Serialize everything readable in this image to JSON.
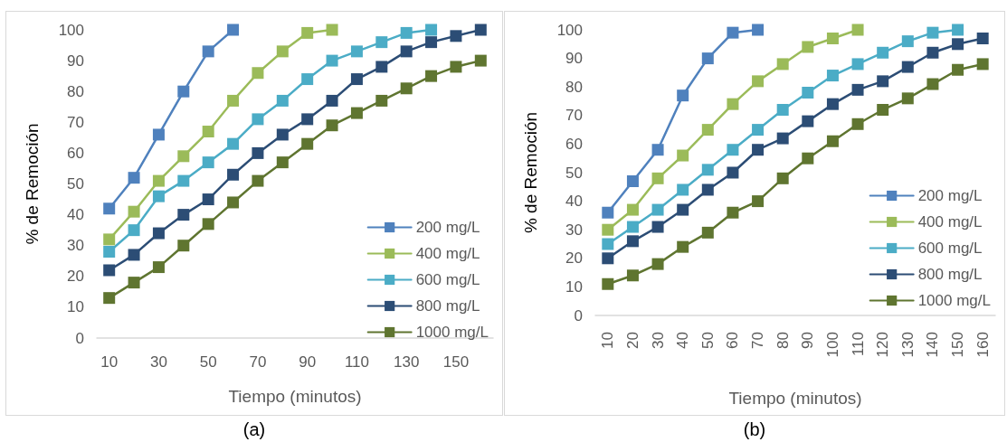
{
  "chart_data": [
    {
      "type": "line",
      "xlabel": "Tiempo (minutos)",
      "ylabel": "% de Remoción",
      "annotations": [
        "(a)"
      ],
      "categories": [
        "10",
        null,
        "30",
        null,
        "50",
        null,
        "70",
        null,
        "90",
        null,
        "110",
        null,
        "130",
        null,
        "150",
        null
      ],
      "ylim": [
        0,
        100
      ],
      "yticks": [
        0,
        10,
        20,
        30,
        40,
        50,
        60,
        70,
        80,
        90,
        100
      ],
      "grid": false,
      "legend": "right",
      "marker": "square",
      "line_style": "solid",
      "series": [
        {
          "name": "200 mg/L",
          "color": "#4f81bd",
          "values": [
            42,
            52,
            66,
            80,
            93,
            100,
            null,
            null,
            null,
            null,
            null,
            null,
            null,
            null,
            null,
            null
          ]
        },
        {
          "name": "400 mg/L",
          "color": "#9bbb59",
          "values": [
            32,
            41,
            51,
            59,
            67,
            77,
            86,
            93,
            99,
            100,
            null,
            null,
            null,
            null,
            null,
            null
          ]
        },
        {
          "name": "600 mg/L",
          "color": "#4bacc6",
          "values": [
            28,
            35,
            46,
            51,
            57,
            63,
            71,
            77,
            84,
            90,
            93,
            96,
            99,
            100,
            null,
            null
          ]
        },
        {
          "name": "800 mg/L",
          "color": "#2c4d75",
          "values": [
            22,
            27,
            34,
            40,
            45,
            53,
            60,
            66,
            71,
            77,
            84,
            88,
            93,
            96,
            98,
            100
          ]
        },
        {
          "name": "1000 mg/L",
          "color": "#5f7530",
          "values": [
            13,
            18,
            23,
            30,
            37,
            44,
            51,
            57,
            63,
            69,
            73,
            77,
            81,
            85,
            88,
            90
          ]
        }
      ]
    },
    {
      "type": "line",
      "xlabel": "Tiempo (minutos)",
      "ylabel": "% de Remoción",
      "annotations": [
        "(b)"
      ],
      "categories": [
        "10",
        "20",
        "30",
        "40",
        "50",
        "60",
        "70",
        "80",
        "90",
        "100",
        "110",
        "120",
        "130",
        "140",
        "150",
        "160"
      ],
      "ylim": [
        0,
        100
      ],
      "yticks": [
        0,
        10,
        20,
        30,
        40,
        50,
        60,
        70,
        80,
        90,
        100
      ],
      "grid": false,
      "legend": "right",
      "marker": "square",
      "line_style": "solid",
      "series": [
        {
          "name": "200 mg/L",
          "color": "#4f81bd",
          "values": [
            36,
            47,
            58,
            77,
            90,
            99,
            100,
            null,
            null,
            null,
            null,
            null,
            null,
            null,
            null,
            null
          ]
        },
        {
          "name": "400 mg/L",
          "color": "#9bbb59",
          "values": [
            30,
            37,
            48,
            56,
            65,
            74,
            82,
            88,
            94,
            97,
            100,
            null,
            null,
            null,
            null,
            null
          ]
        },
        {
          "name": "600 mg/L",
          "color": "#4bacc6",
          "values": [
            25,
            31,
            37,
            44,
            51,
            58,
            65,
            72,
            78,
            84,
            88,
            92,
            96,
            99,
            100,
            null
          ]
        },
        {
          "name": "800 mg/L",
          "color": "#2c4d75",
          "values": [
            20,
            26,
            31,
            37,
            44,
            50,
            58,
            62,
            68,
            74,
            79,
            82,
            87,
            92,
            95,
            97
          ]
        },
        {
          "name": "1000 mg/L",
          "color": "#5f7530",
          "values": [
            11,
            14,
            18,
            24,
            29,
            36,
            40,
            48,
            55,
            61,
            67,
            72,
            76,
            81,
            86,
            88
          ]
        }
      ]
    }
  ]
}
